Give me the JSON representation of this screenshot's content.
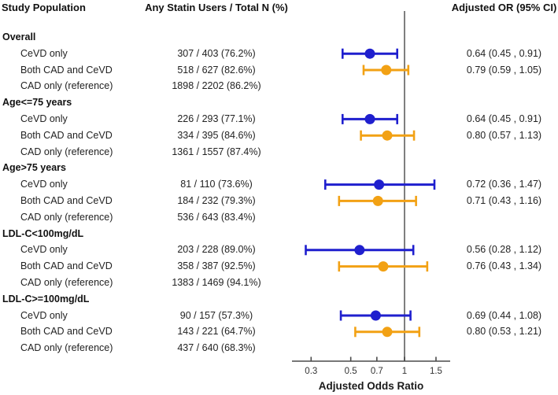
{
  "headers": {
    "study_population": "Study Population",
    "statin_users": "Any Statin Users / Total N (%)",
    "adjusted_or": "Adjusted OR (95% CI)"
  },
  "chart_data": {
    "type": "forest",
    "xlabel": "Adjusted Odds Ratio",
    "x_scale": "log",
    "xlim": [
      0.235,
      1.8
    ],
    "x_ticks": [
      "0.3",
      "0.5",
      "0.7",
      "1",
      "1.5"
    ],
    "reference_line": 1,
    "legend": "none",
    "colors": {
      "cevd_only": "#1f1fce",
      "both_cad_and_cevd": "#f2a114",
      "reference_line": "#7f7f7f",
      "axis": "#4a4a4a"
    },
    "groups": [
      {
        "label": "Overall",
        "rows": [
          {
            "label": "CeVD only",
            "stats": "307 / 403 (76.2%)",
            "series": "cevd_only",
            "or": 0.64,
            "ci_low": 0.45,
            "ci_high": 0.91,
            "or_text": "0.64 (0.45 , 0.91)"
          },
          {
            "label": "Both CAD and CeVD",
            "stats": "518 / 627 (82.6%)",
            "series": "both_cad_and_cevd",
            "or": 0.79,
            "ci_low": 0.59,
            "ci_high": 1.05,
            "or_text": "0.79 (0.59 , 1.05)"
          },
          {
            "label": "CAD only (reference)",
            "stats": "1898 / 2202 (86.2%)"
          }
        ]
      },
      {
        "label": "Age<=75 years",
        "rows": [
          {
            "label": "CeVD only",
            "stats": "226 / 293 (77.1%)",
            "series": "cevd_only",
            "or": 0.64,
            "ci_low": 0.45,
            "ci_high": 0.91,
            "or_text": "0.64 (0.45 , 0.91)"
          },
          {
            "label": "Both CAD and CeVD",
            "stats": "334 / 395 (84.6%)",
            "series": "both_cad_and_cevd",
            "or": 0.8,
            "ci_low": 0.57,
            "ci_high": 1.13,
            "or_text": "0.80 (0.57 , 1.13)"
          },
          {
            "label": "CAD only (reference)",
            "stats": "1361 / 1557 (87.4%)"
          }
        ]
      },
      {
        "label": "Age>75 years",
        "rows": [
          {
            "label": "CeVD only",
            "stats": "81 / 110 (73.6%)",
            "series": "cevd_only",
            "or": 0.72,
            "ci_low": 0.36,
            "ci_high": 1.47,
            "or_text": "0.72 (0.36 , 1.47)"
          },
          {
            "label": "Both CAD and CeVD",
            "stats": "184 / 232 (79.3%)",
            "series": "both_cad_and_cevd",
            "or": 0.71,
            "ci_low": 0.43,
            "ci_high": 1.16,
            "or_text": "0.71 (0.43 , 1.16)"
          },
          {
            "label": "CAD only (reference)",
            "stats": "536 / 643 (83.4%)"
          }
        ]
      },
      {
        "label": "LDL-C<100mg/dL",
        "rows": [
          {
            "label": "CeVD only",
            "stats": "203 / 228 (89.0%)",
            "series": "cevd_only",
            "or": 0.56,
            "ci_low": 0.28,
            "ci_high": 1.12,
            "or_text": "0.56 (0.28 , 1.12)"
          },
          {
            "label": "Both CAD and CeVD",
            "stats": "358 / 387 (92.5%)",
            "series": "both_cad_and_cevd",
            "or": 0.76,
            "ci_low": 0.43,
            "ci_high": 1.34,
            "or_text": "0.76 (0.43 , 1.34)"
          },
          {
            "label": "CAD only (reference)",
            "stats": "1383 / 1469 (94.1%)"
          }
        ]
      },
      {
        "label": "LDL-C>=100mg/dL",
        "rows": [
          {
            "label": "CeVD only",
            "stats": "90 / 157 (57.3%)",
            "series": "cevd_only",
            "or": 0.69,
            "ci_low": 0.44,
            "ci_high": 1.08,
            "or_text": "0.69 (0.44 , 1.08)"
          },
          {
            "label": "Both CAD and CeVD",
            "stats": "143 / 221 (64.7%)",
            "series": "both_cad_and_cevd",
            "or": 0.8,
            "ci_low": 0.53,
            "ci_high": 1.21,
            "or_text": "0.80 (0.53 , 1.21)"
          },
          {
            "label": "CAD only (reference)",
            "stats": "437 / 640 (68.3%)"
          }
        ]
      }
    ]
  }
}
